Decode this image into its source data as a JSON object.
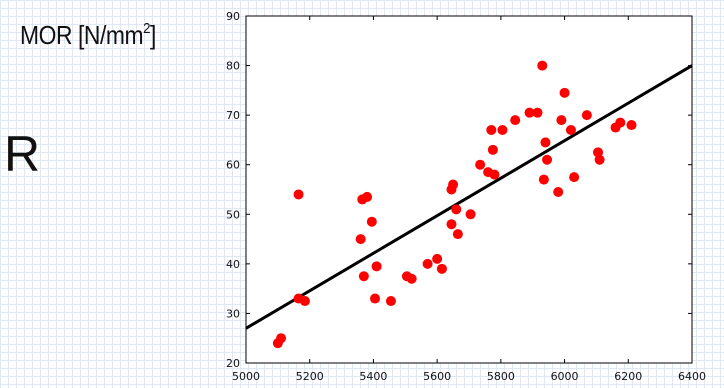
{
  "labels": {
    "y_axis_prefix": "MOR [N/mm",
    "y_axis_sup": "2",
    "y_axis_suffix": "]",
    "side_letter": "R"
  },
  "colors": {
    "points": "#ff0000",
    "line": "#000000",
    "axis": "#000000"
  },
  "chart_data": {
    "type": "scatter",
    "xlim": [
      5000,
      6400
    ],
    "ylim": [
      20,
      90
    ],
    "x_ticks": [
      5000,
      5200,
      5400,
      5600,
      5800,
      6000,
      6200,
      6400
    ],
    "y_ticks": [
      20,
      30,
      40,
      50,
      60,
      70,
      80,
      90
    ],
    "ylabel": "MOR [N/mm2]",
    "grid": false,
    "series": [
      {
        "points": [
          [
            5100,
            24
          ],
          [
            5110,
            25
          ],
          [
            5165,
            54
          ],
          [
            5165,
            33
          ],
          [
            5185,
            32.5
          ],
          [
            5360,
            45
          ],
          [
            5365,
            53
          ],
          [
            5370,
            37.5
          ],
          [
            5380,
            53.5
          ],
          [
            5395,
            48.5
          ],
          [
            5405,
            33
          ],
          [
            5410,
            39.5
          ],
          [
            5455,
            32.5
          ],
          [
            5505,
            37.5
          ],
          [
            5520,
            37
          ],
          [
            5570,
            40
          ],
          [
            5600,
            41
          ],
          [
            5615,
            39
          ],
          [
            5645,
            48
          ],
          [
            5645,
            55
          ],
          [
            5650,
            56
          ],
          [
            5660,
            51
          ],
          [
            5665,
            46
          ],
          [
            5705,
            50
          ],
          [
            5735,
            60
          ],
          [
            5760,
            58.5
          ],
          [
            5770,
            67
          ],
          [
            5775,
            63
          ],
          [
            5780,
            58
          ],
          [
            5805,
            67
          ],
          [
            5845,
            69
          ],
          [
            5890,
            70.5
          ],
          [
            5915,
            70.5
          ],
          [
            5930,
            80
          ],
          [
            5935,
            57
          ],
          [
            5940,
            64.5
          ],
          [
            5945,
            61
          ],
          [
            5980,
            54.5
          ],
          [
            5990,
            69
          ],
          [
            6000,
            74.5
          ],
          [
            6020,
            67
          ],
          [
            6030,
            57.5
          ],
          [
            6070,
            70
          ],
          [
            6105,
            62.5
          ],
          [
            6110,
            61
          ],
          [
            6160,
            67.5
          ],
          [
            6175,
            68.5
          ],
          [
            6210,
            68
          ]
        ]
      }
    ],
    "regression_line": {
      "x": [
        5000,
        6400
      ],
      "y": [
        27,
        80
      ]
    }
  }
}
